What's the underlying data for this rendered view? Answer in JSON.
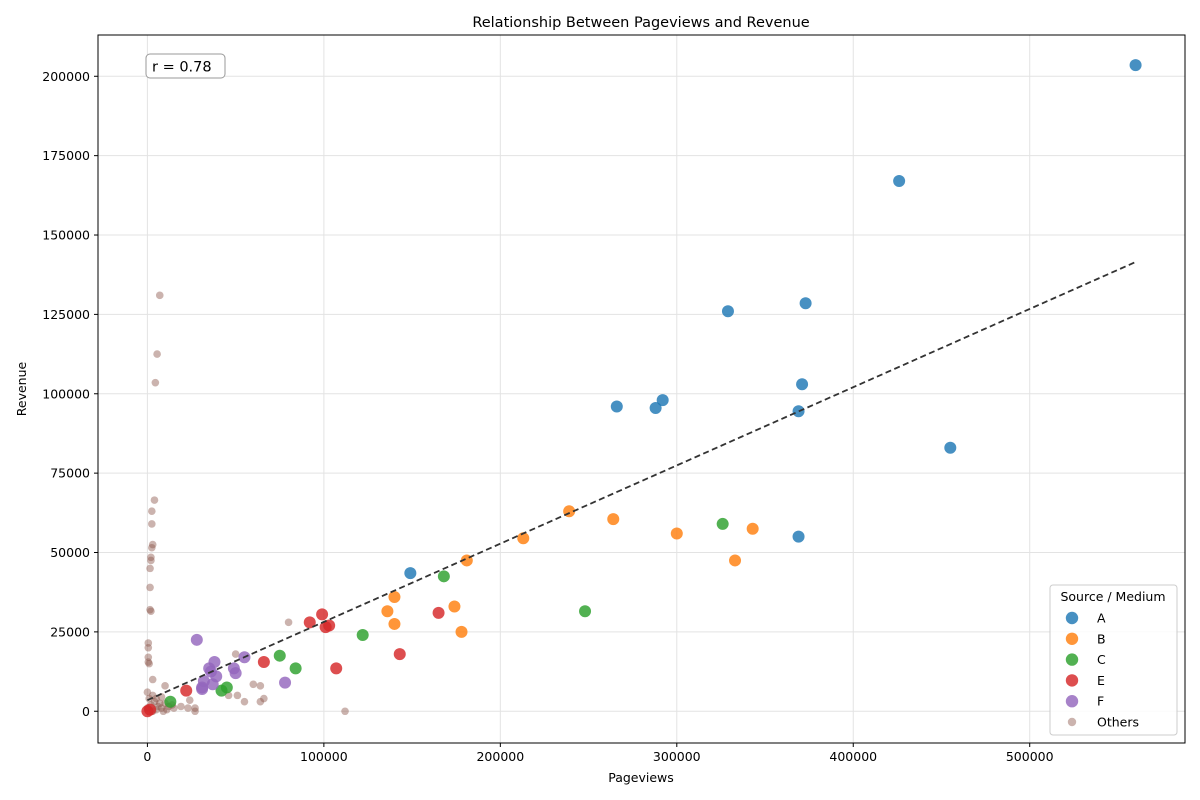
{
  "chart_data": {
    "type": "scatter",
    "title": "Relationship Between Pageviews and Revenue",
    "xlabel": "Pageviews",
    "ylabel": "Revenue",
    "xlim": [
      -28000,
      588000
    ],
    "ylim": [
      -10000,
      213000
    ],
    "xticks": [
      0,
      100000,
      200000,
      300000,
      400000,
      500000
    ],
    "yticks": [
      0,
      25000,
      50000,
      75000,
      100000,
      125000,
      150000,
      175000,
      200000
    ],
    "grid": true,
    "annotation": "r = 0.78",
    "legend": {
      "title": "Source / Medium",
      "position": "lower-right"
    },
    "trendline": {
      "x": [
        0,
        560000
      ],
      "y": [
        3500,
        141500
      ],
      "style": "dashed",
      "color": "#333333"
    },
    "series": [
      {
        "name": "A",
        "color": "#1f77b4",
        "points": [
          [
            560000,
            203500
          ],
          [
            426000,
            167000
          ],
          [
            373000,
            128500
          ],
          [
            329000,
            126000
          ],
          [
            371000,
            103000
          ],
          [
            292000,
            98000
          ],
          [
            266000,
            96000
          ],
          [
            288000,
            95500
          ],
          [
            369000,
            94500
          ],
          [
            455000,
            83000
          ],
          [
            369000,
            55000
          ],
          [
            149000,
            43500
          ]
        ]
      },
      {
        "name": "B",
        "color": "#ff7f0e",
        "points": [
          [
            239000,
            63000
          ],
          [
            264000,
            60500
          ],
          [
            343000,
            57500
          ],
          [
            300000,
            56000
          ],
          [
            213000,
            54500
          ],
          [
            333000,
            47500
          ],
          [
            181000,
            47500
          ],
          [
            140000,
            36000
          ],
          [
            174000,
            33000
          ],
          [
            136000,
            31500
          ],
          [
            140000,
            27500
          ],
          [
            178000,
            25000
          ]
        ]
      },
      {
        "name": "C",
        "color": "#2ca02c",
        "points": [
          [
            326000,
            59000
          ],
          [
            168000,
            42500
          ],
          [
            248000,
            31500
          ],
          [
            122000,
            24000
          ],
          [
            75000,
            17500
          ],
          [
            84000,
            13500
          ],
          [
            42000,
            6500
          ],
          [
            45000,
            7500
          ],
          [
            13000,
            3000
          ]
        ]
      },
      {
        "name": "E",
        "color": "#d62728",
        "points": [
          [
            99000,
            30500
          ],
          [
            92000,
            28000
          ],
          [
            103000,
            27000
          ],
          [
            165000,
            31000
          ],
          [
            101000,
            26500
          ],
          [
            143000,
            18000
          ],
          [
            66000,
            15500
          ],
          [
            107000,
            13500
          ],
          [
            22000,
            6500
          ],
          [
            0,
            0
          ],
          [
            1500,
            500
          ]
        ]
      },
      {
        "name": "F",
        "color": "#9467bd",
        "points": [
          [
            28000,
            22500
          ],
          [
            55000,
            17000
          ],
          [
            38000,
            15500
          ],
          [
            35000,
            13500
          ],
          [
            49000,
            13500
          ],
          [
            36000,
            12500
          ],
          [
            50000,
            12000
          ],
          [
            39000,
            11000
          ],
          [
            32000,
            9500
          ],
          [
            78000,
            9000
          ],
          [
            37000,
            8500
          ],
          [
            31000,
            7500
          ],
          [
            31000,
            7000
          ]
        ]
      },
      {
        "name": "Others",
        "color": "#8c564b",
        "points": [
          [
            7000,
            131000
          ],
          [
            5500,
            112500
          ],
          [
            4500,
            103500
          ],
          [
            4000,
            66500
          ],
          [
            2500,
            63000
          ],
          [
            2500,
            59000
          ],
          [
            3000,
            52500
          ],
          [
            2500,
            51500
          ],
          [
            2000,
            48500
          ],
          [
            2000,
            47500
          ],
          [
            1500,
            45000
          ],
          [
            1500,
            39000
          ],
          [
            1500,
            32000
          ],
          [
            2000,
            31500
          ],
          [
            500,
            21500
          ],
          [
            500,
            20000
          ],
          [
            500,
            17000
          ],
          [
            500,
            15500
          ],
          [
            1000,
            15000
          ],
          [
            80000,
            28000
          ],
          [
            50000,
            18000
          ],
          [
            3000,
            10000
          ],
          [
            10000,
            8000
          ],
          [
            60000,
            8500
          ],
          [
            64000,
            8000
          ],
          [
            0,
            6000
          ],
          [
            3000,
            5000
          ],
          [
            8000,
            4500
          ],
          [
            46000,
            5000
          ],
          [
            51000,
            5000
          ],
          [
            66000,
            4000
          ],
          [
            5000,
            4000
          ],
          [
            1000,
            4000
          ],
          [
            24000,
            3500
          ],
          [
            55000,
            3000
          ],
          [
            64000,
            3000
          ],
          [
            10000,
            2500
          ],
          [
            14000,
            2000
          ],
          [
            19000,
            1500
          ],
          [
            23000,
            1000
          ],
          [
            27000,
            1000
          ],
          [
            6000,
            1500
          ],
          [
            2000,
            2000
          ],
          [
            8000,
            1000
          ],
          [
            11000,
            500
          ],
          [
            27000,
            0
          ],
          [
            112000,
            0
          ],
          [
            3000,
            0
          ],
          [
            5000,
            500
          ],
          [
            9000,
            0
          ],
          [
            12000,
            1500
          ],
          [
            15000,
            1000
          ],
          [
            0,
            1000
          ],
          [
            4000,
            3000
          ],
          [
            7000,
            2500
          ]
        ]
      }
    ]
  }
}
